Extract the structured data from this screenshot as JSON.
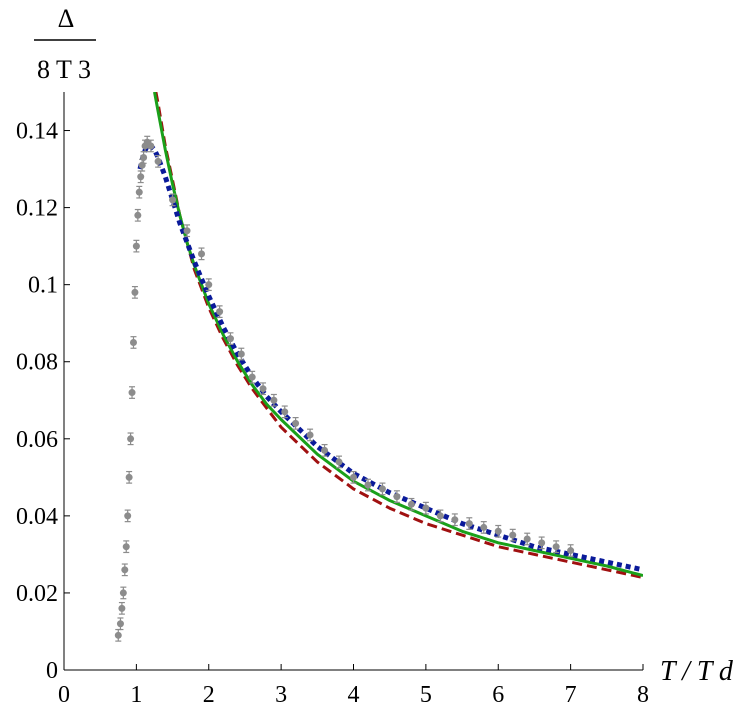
{
  "chart_data": {
    "type": "line",
    "xlabel": "T / T d",
    "ylabel": {
      "numerator": "Δ",
      "denominator": "8 T 3"
    },
    "xlim": [
      0,
      8
    ],
    "ylim": [
      0,
      0.15
    ],
    "x_ticks": [
      "0",
      "1",
      "2",
      "3",
      "4",
      "5",
      "6",
      "7",
      "8"
    ],
    "y_ticks": [
      "0",
      "0.02",
      "0.04",
      "0.06",
      "0.08",
      "0.1",
      "0.12",
      "0.14"
    ],
    "grid": false,
    "legend": "none",
    "series": [
      {
        "kind": "points_with_error",
        "color": "#8c8c8c",
        "x": [
          0.75,
          0.78,
          0.8,
          0.82,
          0.84,
          0.86,
          0.88,
          0.9,
          0.92,
          0.94,
          0.96,
          0.98,
          1.0,
          1.02,
          1.04,
          1.06,
          1.08,
          1.1,
          1.12,
          1.15,
          1.2,
          1.3,
          1.5,
          1.7,
          1.9,
          2.0,
          2.15,
          2.3,
          2.45,
          2.6,
          2.75,
          2.9,
          3.05,
          3.2,
          3.4,
          3.6,
          3.8,
          4.0,
          4.2,
          4.4,
          4.6,
          4.8,
          5.0,
          5.2,
          5.4,
          5.6,
          5.8,
          6.0,
          6.2,
          6.4,
          6.6,
          6.8,
          7.0
        ],
        "y": [
          0.009,
          0.012,
          0.016,
          0.02,
          0.026,
          0.032,
          0.04,
          0.05,
          0.06,
          0.072,
          0.085,
          0.098,
          0.11,
          0.118,
          0.124,
          0.128,
          0.131,
          0.133,
          0.136,
          0.137,
          0.136,
          0.132,
          0.122,
          0.114,
          0.108,
          0.1,
          0.093,
          0.086,
          0.082,
          0.076,
          0.073,
          0.07,
          0.067,
          0.064,
          0.061,
          0.057,
          0.054,
          0.05,
          0.048,
          0.047,
          0.045,
          0.043,
          0.042,
          0.04,
          0.039,
          0.038,
          0.037,
          0.036,
          0.035,
          0.034,
          0.033,
          0.032,
          0.031
        ],
        "err": 0.0015
      },
      {
        "kind": "line",
        "style": "dotted",
        "color": "#0a1a9a",
        "x": [
          1.05,
          1.1,
          1.15,
          1.2,
          1.25,
          1.3,
          1.4,
          1.5,
          1.6,
          1.7,
          1.8,
          2.0,
          2.2,
          2.4,
          2.6,
          2.8,
          3.0,
          3.5,
          4.0,
          4.5,
          5.0,
          5.5,
          6.0,
          6.5,
          7.0,
          7.5,
          8.0
        ],
        "y": [
          0.13,
          0.134,
          0.136,
          0.136,
          0.135,
          0.133,
          0.128,
          0.122,
          0.116,
          0.111,
          0.106,
          0.097,
          0.089,
          0.082,
          0.076,
          0.071,
          0.067,
          0.058,
          0.051,
          0.046,
          0.042,
          0.038,
          0.035,
          0.032,
          0.03,
          0.028,
          0.026
        ]
      },
      {
        "kind": "line",
        "style": "solid",
        "color": "#1aa01a",
        "x": [
          1.25,
          1.3,
          1.4,
          1.5,
          1.6,
          1.7,
          1.8,
          2.0,
          2.2,
          2.4,
          2.6,
          2.8,
          3.0,
          3.5,
          4.0,
          4.5,
          5.0,
          5.5,
          6.0,
          6.5,
          7.0,
          7.5,
          8.0
        ],
        "y": [
          0.15,
          0.145,
          0.135,
          0.126,
          0.118,
          0.111,
          0.105,
          0.095,
          0.087,
          0.08,
          0.074,
          0.069,
          0.065,
          0.056,
          0.049,
          0.044,
          0.04,
          0.036,
          0.033,
          0.031,
          0.029,
          0.027,
          0.0245
        ]
      },
      {
        "kind": "line",
        "style": "dashed",
        "color": "#a01010",
        "x": [
          1.27,
          1.3,
          1.4,
          1.5,
          1.6,
          1.7,
          1.8,
          2.0,
          2.2,
          2.4,
          2.6,
          2.8,
          3.0,
          3.5,
          4.0,
          4.5,
          5.0,
          5.5,
          6.0,
          6.5,
          7.0,
          7.5,
          8.0
        ],
        "y": [
          0.15,
          0.147,
          0.136,
          0.127,
          0.118,
          0.111,
          0.104,
          0.094,
          0.086,
          0.079,
          0.073,
          0.068,
          0.063,
          0.054,
          0.047,
          0.042,
          0.038,
          0.035,
          0.032,
          0.03,
          0.028,
          0.026,
          0.024
        ]
      }
    ]
  }
}
